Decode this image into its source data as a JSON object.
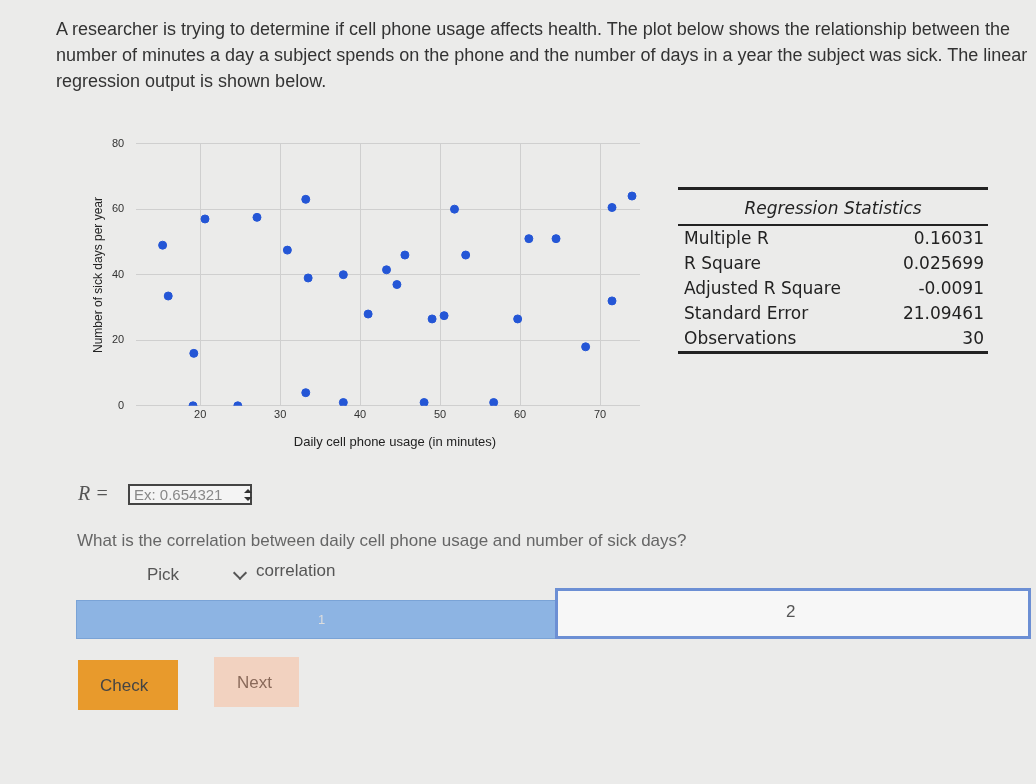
{
  "chart_data": [
    {
      "type": "scatter",
      "title": "A researcher is trying to determine if cell phone usage affects health. The plot below shows the relationship between the number of minutes a day a subject spends on the phone and the number of days in a year the subject was sick. The linear regression output is shown below.",
      "xlabel": "Daily cell phone usage (in minutes)",
      "ylabel": "Number of sick days per year",
      "x": [
        15.3,
        16,
        20.6,
        19.2,
        19.1,
        24.7,
        27.1,
        30.9,
        33.2,
        33.5,
        33.2,
        37.9,
        37.9,
        41,
        43.3,
        44.6,
        45.6,
        49,
        50.5,
        48,
        51.8,
        53.2,
        56.7,
        59.7,
        61.1,
        64.5,
        68.2,
        71.5,
        71.5,
        74
      ],
      "values": [
        49,
        33.5,
        57,
        16,
        0,
        0,
        57.5,
        47.5,
        63,
        39,
        4,
        40,
        1,
        28,
        41.5,
        37,
        46,
        26.5,
        27.5,
        1,
        60,
        46,
        1,
        26.5,
        51,
        51,
        18,
        32,
        60.5,
        64
      ],
      "color": "#2456d6",
      "marker": "circle",
      "xlim": [
        12,
        75
      ],
      "ylim": [
        0,
        80
      ],
      "xticks": [
        20,
        30,
        40,
        50,
        60,
        70
      ],
      "yticks": [
        0,
        20,
        40,
        60,
        80
      ],
      "grid": true,
      "legend": false,
      "annotations": [
        "R =",
        "Ex: 0.654321",
        "What is the correlation between daily cell phone usage and number of sick days?",
        "Pick",
        "correlation",
        "1",
        "2",
        "Check",
        "Next"
      ]
    },
    {
      "type": "other",
      "title": "Regression Statistics",
      "categories": [
        "Multiple R",
        "R Square",
        "Adjusted R Square",
        "Standard Error",
        "Observations"
      ],
      "values": [
        0.16031,
        0.025699,
        -0.0091,
        21.09461,
        30
      ],
      "data_labels": true
    }
  ]
}
